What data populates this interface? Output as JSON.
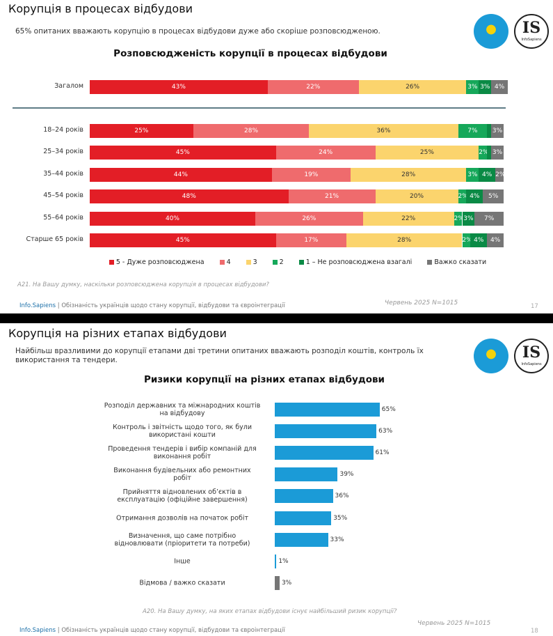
{
  "slides": [
    {
      "title": "Корупція в процесах відбудови",
      "subtitle": "65% опитаних вважають корупцію в процесах відбудови дуже або скоріше розповсюдженою.",
      "note": "A21. На Вашу думку, наскільки розповсюджена корупція в процесах відбудови?",
      "date": "Червень 2025 N=1015",
      "page": "17"
    },
    {
      "title": "Корупція на різних етапах відбудови",
      "subtitle": "Найбільш вразливими до корупції етапами дві третини опитаних вважають розподіл коштів, контроль їх використання та тендери.",
      "note": "A20. На Вашу думку, на яких етапах відбудови існує найбільший ризик корупції?",
      "date": "Червень 2025 N=1015",
      "page": "18"
    }
  ],
  "footer_brand": "Info.Sapiens",
  "footer_text": "| Обізнаність українців щодо стану корупції, відбудови та євроінтеграції",
  "logo_text": "IS",
  "logo_caption": "InfoSapiens",
  "chart_data": [
    {
      "type": "bar",
      "orientation": "horizontal",
      "stacked": true,
      "title": "Розповсюдженість корупції в процесах відбудови",
      "categories": [
        "Загалом",
        "18–24 років",
        "25–34 років",
        "35–44 років",
        "45–54 років",
        "55–64 років",
        "Старше 65 років"
      ],
      "xlim": [
        0,
        100
      ],
      "legend": "bottom",
      "series": [
        {
          "name": "5 - Дуже розповсюджена",
          "color": "#e31e26",
          "label_color": "#ffffff",
          "values": [
            43,
            25,
            45,
            44,
            48,
            40,
            45
          ],
          "value_labels": [
            "43%",
            "25%",
            "45%",
            "44%",
            "48%",
            "40%",
            "45%"
          ]
        },
        {
          "name": "4",
          "color": "#ef6b6d",
          "label_color": "#ffffff",
          "values": [
            22,
            28,
            24,
            19,
            21,
            26,
            17
          ],
          "value_labels": [
            "22%",
            "28%",
            "24%",
            "19%",
            "21%",
            "26%",
            "17%"
          ]
        },
        {
          "name": "3",
          "color": "#fbd46d",
          "label_color": "#333333",
          "values": [
            26,
            36,
            25,
            28,
            20,
            22,
            28
          ],
          "value_labels": [
            "26%",
            "36%",
            "25%",
            "28%",
            "20%",
            "22%",
            "28%"
          ]
        },
        {
          "name": "2",
          "color": "#16a85a",
          "label_color": "#ffffff",
          "values": [
            3,
            7,
            2,
            3,
            2,
            2,
            2
          ],
          "value_labels": [
            "3%",
            "7%",
            "2%",
            "3%",
            "2%",
            "2%",
            "2%"
          ]
        },
        {
          "name": "1 – Не розповсюджена взагалі",
          "color": "#0a8a45",
          "label_color": "#ffffff",
          "values": [
            3,
            1,
            1,
            4,
            4,
            3,
            4
          ],
          "value_labels": [
            "3%",
            null,
            null,
            "4%",
            "4%",
            "3%",
            "4%"
          ]
        },
        {
          "name": "Важко сказати",
          "color": "#767676",
          "label_color": "#ffffff",
          "values": [
            4,
            3,
            3,
            2,
            5,
            7,
            4
          ],
          "value_labels": [
            "4%",
            "3%",
            "3%",
            "2%",
            "5%",
            "7%",
            "4%"
          ]
        }
      ]
    },
    {
      "type": "bar",
      "orientation": "horizontal",
      "title": "Ризики корупції на різних етапах відбудови",
      "categories": [
        "Розподіл державних та міжнародних коштів на відбудову",
        "Контроль і звітність щодо того, як були використані кошти",
        "Проведення тендерів і вибір компаній для виконання робіт",
        "Виконання будівельних або ремонтних робіт",
        "Прийняття відновлених об’єктів в експлуатацію (офіційне завершення)",
        "Отримання дозволів на початок робіт",
        "Визначення, що саме потрібно відновлювати (пріоритети та потреби)",
        "Інше",
        "Відмова / важко сказати"
      ],
      "values": [
        65,
        63,
        61,
        39,
        36,
        35,
        33,
        1,
        3
      ],
      "value_labels": [
        "65%",
        "63%",
        "61%",
        "39%",
        "36%",
        "35%",
        "33%",
        "1%",
        "3%"
      ],
      "colors": [
        "#1b9bd7",
        "#1b9bd7",
        "#1b9bd7",
        "#1b9bd7",
        "#1b9bd7",
        "#1b9bd7",
        "#1b9bd7",
        "#1b9bd7",
        "#767676"
      ],
      "xlim": [
        0,
        100
      ]
    }
  ]
}
